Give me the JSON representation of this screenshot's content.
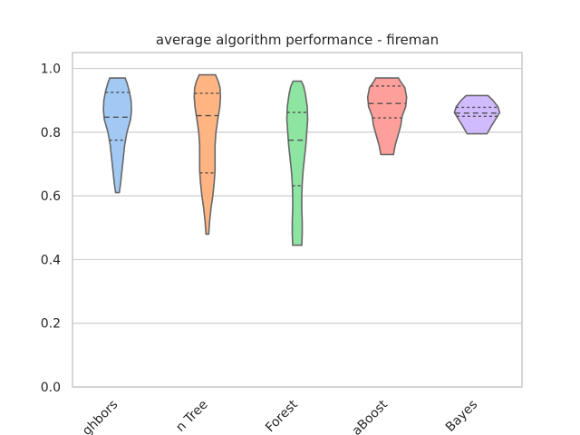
{
  "chart_data": {
    "type": "violin",
    "title": "average algorithm performance - fireman",
    "xlabel": "",
    "ylabel": "",
    "ylim": [
      0,
      1.05
    ],
    "yticks": [
      0.0,
      0.2,
      0.4,
      0.6,
      0.8,
      1.0
    ],
    "ytick_labels": [
      "0.0",
      "0.2",
      "0.4",
      "0.6",
      "0.8",
      "1.0"
    ],
    "grid": "horizontal",
    "categories": [
      "ghbors",
      "n Tree",
      "Forest",
      "aBoost",
      "Bayes"
    ],
    "violins": [
      {
        "color": "#a1c9f4",
        "min": 0.61,
        "max": 0.97,
        "q1": 0.775,
        "median": 0.847,
        "q3": 0.925,
        "density": [
          [
            0.61,
            0.08
          ],
          [
            0.64,
            0.14
          ],
          [
            0.68,
            0.2
          ],
          [
            0.72,
            0.26
          ],
          [
            0.76,
            0.32
          ],
          [
            0.8,
            0.42
          ],
          [
            0.84,
            0.58
          ],
          [
            0.87,
            0.62
          ],
          [
            0.9,
            0.6
          ],
          [
            0.93,
            0.52
          ],
          [
            0.955,
            0.42
          ],
          [
            0.97,
            0.34
          ]
        ]
      },
      {
        "color": "#ffb482",
        "min": 0.48,
        "max": 0.98,
        "q1": 0.672,
        "median": 0.852,
        "q3": 0.922,
        "density": [
          [
            0.48,
            0.06
          ],
          [
            0.52,
            0.1
          ],
          [
            0.56,
            0.16
          ],
          [
            0.6,
            0.24
          ],
          [
            0.64,
            0.3
          ],
          [
            0.68,
            0.34
          ],
          [
            0.72,
            0.34
          ],
          [
            0.76,
            0.34
          ],
          [
            0.8,
            0.38
          ],
          [
            0.84,
            0.46
          ],
          [
            0.88,
            0.55
          ],
          [
            0.91,
            0.58
          ],
          [
            0.94,
            0.56
          ],
          [
            0.96,
            0.48
          ],
          [
            0.98,
            0.36
          ]
        ]
      },
      {
        "color": "#8de5a1",
        "min": 0.445,
        "max": 0.96,
        "q1": 0.632,
        "median": 0.775,
        "q3": 0.862,
        "density": [
          [
            0.445,
            0.2
          ],
          [
            0.48,
            0.22
          ],
          [
            0.52,
            0.22
          ],
          [
            0.56,
            0.2
          ],
          [
            0.6,
            0.2
          ],
          [
            0.64,
            0.22
          ],
          [
            0.68,
            0.26
          ],
          [
            0.72,
            0.32
          ],
          [
            0.76,
            0.38
          ],
          [
            0.8,
            0.42
          ],
          [
            0.84,
            0.46
          ],
          [
            0.88,
            0.44
          ],
          [
            0.92,
            0.36
          ],
          [
            0.945,
            0.28
          ],
          [
            0.96,
            0.18
          ]
        ]
      },
      {
        "color": "#ff9f9b",
        "min": 0.73,
        "max": 0.97,
        "q1": 0.845,
        "median": 0.89,
        "q3": 0.945,
        "density": [
          [
            0.73,
            0.28
          ],
          [
            0.76,
            0.36
          ],
          [
            0.79,
            0.48
          ],
          [
            0.82,
            0.6
          ],
          [
            0.85,
            0.66
          ],
          [
            0.88,
            0.82
          ],
          [
            0.91,
            0.86
          ],
          [
            0.94,
            0.78
          ],
          [
            0.96,
            0.58
          ],
          [
            0.97,
            0.5
          ]
        ]
      },
      {
        "color": "#d0bbff",
        "min": 0.795,
        "max": 0.915,
        "q1": 0.85,
        "median": 0.86,
        "q3": 0.878,
        "density": [
          [
            0.795,
            0.44
          ],
          [
            0.82,
            0.64
          ],
          [
            0.845,
            0.86
          ],
          [
            0.862,
            1.0
          ],
          [
            0.88,
            0.92
          ],
          [
            0.9,
            0.7
          ],
          [
            0.915,
            0.48
          ]
        ]
      }
    ]
  }
}
